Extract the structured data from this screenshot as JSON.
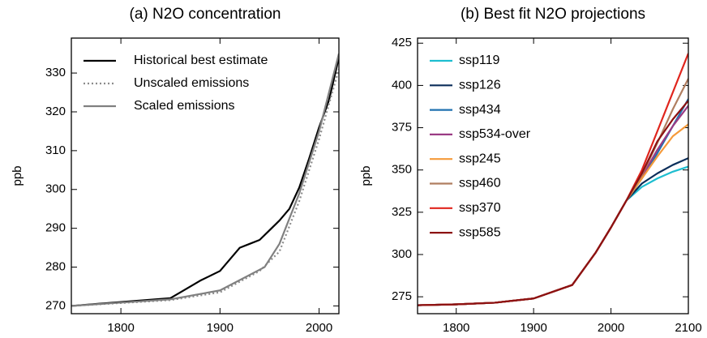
{
  "chart_data": [
    {
      "type": "line",
      "title": "(a) N2O concentration",
      "y_label": "ppb",
      "xlim": [
        1750,
        2020
      ],
      "xticks": [
        1800,
        1900,
        2000
      ],
      "ylim": [
        268,
        339
      ],
      "yticks": [
        270,
        280,
        290,
        300,
        310,
        320,
        330
      ],
      "legend": "upper left",
      "series": [
        {
          "name": "Historical best estimate",
          "color": "#000000",
          "style": "solid",
          "x": [
            1750,
            1850,
            1860,
            1880,
            1900,
            1910,
            1920,
            1930,
            1940,
            1950,
            1960,
            1970,
            1980,
            1990,
            2000,
            2010,
            2020
          ],
          "values": [
            270,
            272,
            273.5,
            276.5,
            279,
            282,
            285,
            286,
            287,
            289.5,
            292,
            295,
            300.5,
            308,
            316,
            323,
            334
          ]
        },
        {
          "name": "Unscaled emissions",
          "color": "#8c8c8c",
          "style": "dotted",
          "x": [
            1750,
            1850,
            1900,
            1940,
            1960,
            1980,
            2000,
            2020
          ],
          "values": [
            270,
            271.5,
            273.5,
            279,
            284,
            297,
            313,
            331
          ]
        },
        {
          "name": "Scaled emissions",
          "color": "#808080",
          "style": "solid",
          "x": [
            1750,
            1850,
            1900,
            1945,
            1960,
            1980,
            2000,
            2020
          ],
          "values": [
            270,
            271.7,
            274,
            280,
            286,
            299,
            315,
            335
          ]
        }
      ]
    },
    {
      "type": "line",
      "title": "(b) Best fit N2O projections",
      "y_label": "ppb",
      "xlim": [
        1750,
        2100
      ],
      "xticks": [
        1800,
        1900,
        2000,
        2100
      ],
      "ylim": [
        265,
        428
      ],
      "yticks": [
        275,
        300,
        325,
        350,
        375,
        400,
        425
      ],
      "legend": "upper left",
      "series": [
        {
          "name": "ssp119",
          "color": "#1ebed0",
          "style": "solid",
          "x": [
            1750,
            1800,
            1850,
            1900,
            1950,
            1980,
            2000,
            2020,
            2040,
            2060,
            2080,
            2100
          ],
          "values": [
            270,
            270.5,
            271.5,
            274,
            282,
            301,
            316,
            332,
            340,
            345,
            349,
            352
          ]
        },
        {
          "name": "ssp126",
          "color": "#0b2e5a",
          "style": "solid",
          "x": [
            1750,
            1800,
            1850,
            1900,
            1950,
            1980,
            2000,
            2020,
            2040,
            2060,
            2080,
            2100
          ],
          "values": [
            270,
            270.5,
            271.5,
            274,
            282,
            301,
            316,
            332,
            342,
            348,
            353,
            357
          ]
        },
        {
          "name": "ssp434",
          "color": "#2072b0",
          "style": "solid",
          "x": [
            1750,
            1800,
            1850,
            1900,
            1950,
            1980,
            2000,
            2020,
            2040,
            2060,
            2080,
            2100
          ],
          "values": [
            270,
            270.5,
            271.5,
            274,
            282,
            301,
            316,
            332,
            345,
            360,
            376,
            392
          ]
        },
        {
          "name": "ssp534-over",
          "color": "#9a3b84",
          "style": "solid",
          "x": [
            1750,
            1800,
            1850,
            1900,
            1950,
            1980,
            2000,
            2020,
            2040,
            2060,
            2080,
            2100
          ],
          "values": [
            270,
            270.5,
            271.5,
            274,
            282,
            301,
            316,
            332,
            346,
            362,
            376,
            388
          ]
        },
        {
          "name": "ssp245",
          "color": "#f59a3a",
          "style": "solid",
          "x": [
            1750,
            1800,
            1850,
            1900,
            1950,
            1980,
            2000,
            2020,
            2040,
            2060,
            2080,
            2100
          ],
          "values": [
            270,
            270.5,
            271.5,
            274,
            282,
            301,
            316,
            332,
            345,
            358,
            370,
            377
          ]
        },
        {
          "name": "ssp460",
          "color": "#b07e60",
          "style": "solid",
          "x": [
            1750,
            1800,
            1850,
            1900,
            1950,
            1980,
            2000,
            2020,
            2040,
            2060,
            2080,
            2100
          ],
          "values": [
            270,
            270.5,
            271.5,
            274,
            282,
            301,
            316,
            332,
            347,
            366,
            386,
            404
          ]
        },
        {
          "name": "ssp370",
          "color": "#e0251d",
          "style": "solid",
          "x": [
            1750,
            1800,
            1850,
            1900,
            1950,
            1980,
            2000,
            2020,
            2040,
            2060,
            2080,
            2100
          ],
          "values": [
            270,
            270.5,
            271.5,
            274,
            282,
            301,
            316,
            332,
            350,
            373,
            396,
            419
          ]
        },
        {
          "name": "ssp585",
          "color": "#8c1212",
          "style": "solid",
          "x": [
            1750,
            1800,
            1850,
            1900,
            1950,
            1980,
            2000,
            2020,
            2040,
            2060,
            2080,
            2100
          ],
          "values": [
            270,
            270.5,
            271.5,
            274,
            282,
            301,
            316,
            332,
            348,
            367,
            380,
            391
          ]
        }
      ]
    }
  ]
}
